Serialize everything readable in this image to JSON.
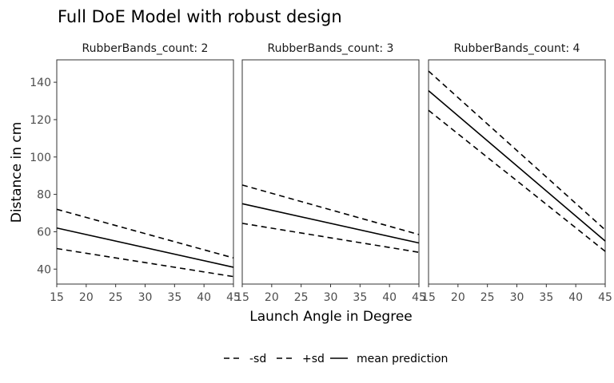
{
  "chart_data": {
    "type": "line",
    "title": "Full DoE Model with robust design",
    "xlabel": "Launch Angle in Degree",
    "ylabel": "Distance in cm",
    "xlim": [
      15,
      45
    ],
    "ylim": [
      32,
      152
    ],
    "x_ticks": [
      15,
      20,
      25,
      30,
      35,
      40,
      45
    ],
    "y_ticks": [
      40,
      60,
      80,
      100,
      120,
      140
    ],
    "legend": {
      "position": "bottom",
      "entries": [
        {
          "label": "-sd",
          "linestyle": "dashed"
        },
        {
          "label": "+sd",
          "linestyle": "dashed"
        },
        {
          "label": "mean prediction",
          "linestyle": "solid"
        }
      ]
    },
    "panels": [
      {
        "strip": "RubberBands_count: 2",
        "x": [
          15,
          45
        ],
        "series": [
          {
            "name": "-sd",
            "values": [
              51,
              36
            ]
          },
          {
            "name": "+sd",
            "values": [
              72,
              46
            ]
          },
          {
            "name": "mean prediction",
            "values": [
              62,
              41
            ]
          }
        ]
      },
      {
        "strip": "RubberBands_count: 3",
        "x": [
          15,
          45
        ],
        "series": [
          {
            "name": "-sd",
            "values": [
              64.5,
              49
            ]
          },
          {
            "name": "+sd",
            "values": [
              85,
              58.5
            ]
          },
          {
            "name": "mean prediction",
            "values": [
              75,
              54
            ]
          }
        ]
      },
      {
        "strip": "RubberBands_count: 4",
        "x": [
          15,
          45
        ],
        "series": [
          {
            "name": "-sd",
            "values": [
              125,
              49.5
            ]
          },
          {
            "name": "+sd",
            "values": [
              146,
              61
            ]
          },
          {
            "name": "mean prediction",
            "values": [
              135.5,
              55
            ]
          }
        ]
      }
    ]
  }
}
